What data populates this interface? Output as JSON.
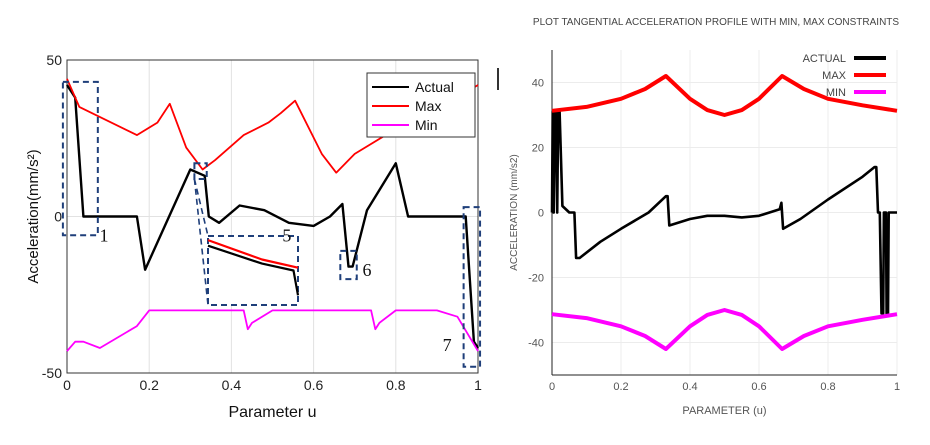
{
  "chart_data": [
    {
      "type": "line",
      "xlabel": "Parameter u",
      "ylabel": "Acceleration(mm/s²)",
      "xlim": [
        0,
        1
      ],
      "ylim": [
        -50,
        50
      ],
      "x_ticks": [
        "0",
        "0.2",
        "0.4",
        "0.6",
        "0.8",
        "1"
      ],
      "y_ticks": [
        "-50",
        "0",
        "50"
      ],
      "grid": true,
      "legend_position": "top-right",
      "series": [
        {
          "name": "Actual",
          "color": "#000000",
          "points": [
            [
              0,
              42
            ],
            [
              0.02,
              38
            ],
            [
              0.04,
              0
            ],
            [
              0.17,
              0
            ],
            [
              0.19,
              -17
            ],
            [
              0.3,
              15
            ],
            [
              0.335,
              13
            ],
            [
              0.345,
              0
            ],
            [
              0.37,
              -2
            ],
            [
              0.42,
              3.5
            ],
            [
              0.48,
              2
            ],
            [
              0.54,
              -2
            ],
            [
              0.6,
              -3
            ],
            [
              0.64,
              0
            ],
            [
              0.67,
              4
            ],
            [
              0.685,
              -16
            ],
            [
              0.695,
              -16
            ],
            [
              0.73,
              2
            ],
            [
              0.8,
              17
            ],
            [
              0.83,
              0
            ],
            [
              0.97,
              0
            ],
            [
              0.99,
              -40
            ],
            [
              1.0,
              -42
            ]
          ]
        },
        {
          "name": "Max",
          "color": "#ff0000",
          "points": [
            [
              0,
              44
            ],
            [
              0.03,
              35
            ],
            [
              0.17,
              26
            ],
            [
              0.22,
              30
            ],
            [
              0.25,
              36
            ],
            [
              0.29,
              22
            ],
            [
              0.33,
              15
            ],
            [
              0.36,
              18
            ],
            [
              0.43,
              26
            ],
            [
              0.49,
              30
            ],
            [
              0.52,
              33
            ],
            [
              0.555,
              37
            ],
            [
              0.62,
              20
            ],
            [
              0.655,
              14
            ],
            [
              0.7,
              20
            ],
            [
              0.8,
              28
            ],
            [
              0.86,
              34
            ],
            [
              0.95,
              38
            ],
            [
              1.0,
              42
            ]
          ]
        },
        {
          "name": "Min",
          "color": "#ff00ff",
          "points": [
            [
              0,
              -43
            ],
            [
              0.02,
              -40
            ],
            [
              0.04,
              -40
            ],
            [
              0.08,
              -42
            ],
            [
              0.17,
              -35
            ],
            [
              0.2,
              -30
            ],
            [
              0.43,
              -30
            ],
            [
              0.44,
              -36
            ],
            [
              0.45,
              -34
            ],
            [
              0.5,
              -30
            ],
            [
              0.74,
              -30
            ],
            [
              0.75,
              -36
            ],
            [
              0.76,
              -34
            ],
            [
              0.8,
              -30
            ],
            [
              0.9,
              -30
            ],
            [
              0.95,
              -32
            ],
            [
              1.0,
              -43
            ]
          ]
        }
      ],
      "annotations": [
        "1",
        "5",
        "6",
        "7"
      ],
      "annotation_boxes": [
        {
          "label": "1",
          "u_range": [
            -0.01,
            0.075
          ],
          "a_range": [
            -6,
            43
          ]
        },
        {
          "label": "5",
          "u_range": [
            0.31,
            0.34
          ],
          "a_range": [
            12,
            17
          ]
        },
        {
          "label": "6",
          "u_range": [
            0.665,
            0.705
          ],
          "a_range": [
            -20,
            -11
          ]
        },
        {
          "label": "7",
          "u_range": [
            0.965,
            1.005
          ],
          "a_range": [
            -48,
            3
          ]
        }
      ],
      "inset": {
        "label": "5",
        "series": [
          {
            "color": "#000000",
            "points": [
              [
                0.0,
                18
              ],
              [
                0.6,
                5
              ],
              [
                0.95,
                0
              ],
              [
                1.0,
                -18
              ]
            ]
          },
          {
            "color": "#ff0000",
            "points": [
              [
                0.0,
                22
              ],
              [
                0.6,
                8
              ],
              [
                1.0,
                2
              ]
            ]
          }
        ]
      }
    },
    {
      "type": "line",
      "title": "PLOT TANGENTIAL ACCELERATION PROFILE WITH MIN, MAX CONSTRAINTS",
      "xlabel": "PARAMETER (u)",
      "ylabel": "ACCELERATION (mm/s2)",
      "xlim": [
        0,
        1
      ],
      "ylim": [
        -50,
        50
      ],
      "x_ticks": [
        "0",
        "0.2",
        "0.4",
        "0.6",
        "0.8",
        "1"
      ],
      "y_ticks": [
        "-40",
        "-20",
        "0",
        "20",
        "40"
      ],
      "grid": true,
      "legend_position": "top-right",
      "series": [
        {
          "name": "ACTUAL",
          "color": "#000000",
          "points": [
            [
              0,
              0
            ],
            [
              0.002,
              31
            ],
            [
              0.005,
              0
            ],
            [
              0.008,
              31
            ],
            [
              0.012,
              31
            ],
            [
              0.015,
              0
            ],
            [
              0.018,
              31
            ],
            [
              0.022,
              31
            ],
            [
              0.03,
              2
            ],
            [
              0.05,
              0
            ],
            [
              0.065,
              0
            ],
            [
              0.07,
              -14
            ],
            [
              0.08,
              -14
            ],
            [
              0.14,
              -9
            ],
            [
              0.2,
              -5
            ],
            [
              0.28,
              0
            ],
            [
              0.33,
              5
            ],
            [
              0.335,
              5
            ],
            [
              0.34,
              -4
            ],
            [
              0.4,
              -2
            ],
            [
              0.45,
              -1
            ],
            [
              0.5,
              -1
            ],
            [
              0.55,
              -1.5
            ],
            [
              0.6,
              -1
            ],
            [
              0.66,
              1
            ],
            [
              0.665,
              3
            ],
            [
              0.67,
              -5
            ],
            [
              0.72,
              -2
            ],
            [
              0.8,
              4
            ],
            [
              0.9,
              11
            ],
            [
              0.935,
              14
            ],
            [
              0.94,
              14
            ],
            [
              0.945,
              0
            ],
            [
              0.95,
              0
            ],
            [
              0.955,
              -31
            ],
            [
              0.96,
              -31
            ],
            [
              0.962,
              0
            ],
            [
              0.968,
              0
            ],
            [
              0.97,
              -31
            ],
            [
              0.974,
              -31
            ],
            [
              0.976,
              0
            ],
            [
              0.985,
              0
            ],
            [
              1.0,
              0
            ]
          ]
        },
        {
          "name": "MAX",
          "color": "#ff0000",
          "points": [
            [
              0,
              31.3
            ],
            [
              0.1,
              32.5
            ],
            [
              0.2,
              35
            ],
            [
              0.27,
              38
            ],
            [
              0.33,
              42
            ],
            [
              0.4,
              35
            ],
            [
              0.45,
              31.5
            ],
            [
              0.5,
              30
            ],
            [
              0.55,
              31.5
            ],
            [
              0.6,
              35
            ],
            [
              0.667,
              42
            ],
            [
              0.73,
              38
            ],
            [
              0.8,
              35
            ],
            [
              0.9,
              33
            ],
            [
              1.0,
              31.3
            ]
          ]
        },
        {
          "name": "MIN",
          "color": "#ff00ff",
          "points": [
            [
              0,
              -31.3
            ],
            [
              0.1,
              -32.5
            ],
            [
              0.2,
              -35
            ],
            [
              0.27,
              -38
            ],
            [
              0.33,
              -42
            ],
            [
              0.4,
              -35
            ],
            [
              0.45,
              -31.5
            ],
            [
              0.5,
              -30
            ],
            [
              0.55,
              -31.5
            ],
            [
              0.6,
              -35
            ],
            [
              0.667,
              -42
            ],
            [
              0.73,
              -38
            ],
            [
              0.8,
              -35
            ],
            [
              0.9,
              -33
            ],
            [
              1.0,
              -31.3
            ]
          ]
        }
      ]
    }
  ]
}
